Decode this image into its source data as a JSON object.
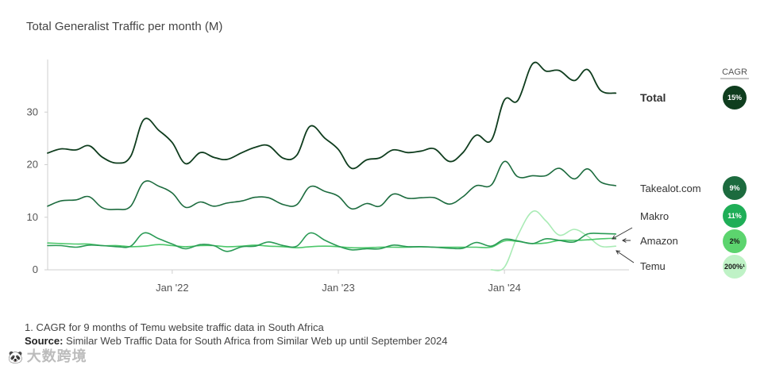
{
  "chart_data": {
    "type": "line",
    "title": "Total Generalist Traffic per month (M)",
    "xlabel": "",
    "ylabel": "",
    "ylim": [
      0,
      40
    ],
    "yticks": [
      0,
      10,
      20,
      30
    ],
    "x_range": [
      2021.25,
      2024.75
    ],
    "xticks": [
      {
        "label": "Jan '22",
        "value": 2022.0
      },
      {
        "label": "Jan '23",
        "value": 2023.0
      },
      {
        "label": "Jan '24",
        "value": 2024.0
      }
    ],
    "cagr_header": "CAGR",
    "series": [
      {
        "name": "Total",
        "color": "#0f3d1e",
        "cagr": "15%",
        "cagr_fill": "#0f3d1e",
        "cagr_text_color": "#ffffff",
        "x": [
          2021.25,
          2021.33,
          2021.42,
          2021.5,
          2021.58,
          2021.67,
          2021.75,
          2021.83,
          2021.92,
          2022.0,
          2022.08,
          2022.17,
          2022.25,
          2022.33,
          2022.42,
          2022.5,
          2022.58,
          2022.67,
          2022.75,
          2022.83,
          2022.92,
          2023.0,
          2023.08,
          2023.17,
          2023.25,
          2023.33,
          2023.42,
          2023.5,
          2023.58,
          2023.67,
          2023.75,
          2023.83,
          2023.92,
          2024.0,
          2024.08,
          2024.17,
          2024.25,
          2024.33,
          2024.42,
          2024.5,
          2024.58,
          2024.67
        ],
        "values": [
          22.2,
          23.0,
          22.8,
          23.6,
          21.4,
          20.3,
          21.6,
          28.6,
          26.5,
          24.2,
          20.2,
          22.3,
          21.4,
          21.0,
          22.3,
          23.3,
          23.6,
          21.2,
          21.8,
          27.3,
          25.0,
          22.9,
          19.3,
          20.9,
          21.3,
          22.8,
          22.3,
          22.6,
          23.0,
          20.6,
          22.3,
          25.6,
          24.6,
          32.3,
          32.2,
          39.2,
          37.8,
          37.9,
          36.0,
          38.1,
          34.1,
          33.6
        ]
      },
      {
        "name": "Takealot.com",
        "color": "#1c6b3e",
        "cagr": "9%",
        "cagr_fill": "#1c6b3e",
        "cagr_text_color": "#ffffff",
        "x": [
          2021.25,
          2021.33,
          2021.42,
          2021.5,
          2021.58,
          2021.67,
          2021.75,
          2021.83,
          2021.92,
          2022.0,
          2022.08,
          2022.17,
          2022.25,
          2022.33,
          2022.42,
          2022.5,
          2022.58,
          2022.67,
          2022.75,
          2022.83,
          2022.92,
          2023.0,
          2023.08,
          2023.17,
          2023.25,
          2023.33,
          2023.42,
          2023.5,
          2023.58,
          2023.67,
          2023.75,
          2023.83,
          2023.92,
          2024.0,
          2024.08,
          2024.17,
          2024.25,
          2024.33,
          2024.42,
          2024.5,
          2024.58,
          2024.67
        ],
        "values": [
          12.1,
          13.1,
          13.3,
          13.9,
          11.8,
          11.5,
          12.1,
          16.7,
          15.9,
          14.6,
          11.9,
          12.9,
          12.1,
          12.7,
          13.1,
          13.8,
          13.7,
          12.4,
          12.4,
          15.8,
          14.9,
          14.0,
          11.6,
          12.6,
          12.1,
          14.4,
          13.6,
          13.7,
          13.7,
          12.5,
          13.9,
          16.0,
          16.1,
          20.6,
          17.7,
          17.9,
          17.9,
          19.3,
          17.3,
          19.2,
          16.7,
          16.0
        ]
      },
      {
        "name": "Makro",
        "color": "#2a9a55",
        "cagr": "11%",
        "cagr_fill": "#1fae57",
        "cagr_text_color": "#ffffff",
        "x": [
          2021.25,
          2021.33,
          2021.42,
          2021.5,
          2021.58,
          2021.67,
          2021.75,
          2021.83,
          2021.92,
          2022.0,
          2022.08,
          2022.17,
          2022.25,
          2022.33,
          2022.42,
          2022.5,
          2022.58,
          2022.67,
          2022.75,
          2022.83,
          2022.92,
          2023.0,
          2023.08,
          2023.17,
          2023.25,
          2023.33,
          2023.42,
          2023.5,
          2023.58,
          2023.67,
          2023.75,
          2023.83,
          2023.92,
          2024.0,
          2024.08,
          2024.17,
          2024.25,
          2024.33,
          2024.42,
          2024.5,
          2024.58,
          2024.67
        ],
        "values": [
          4.6,
          4.6,
          4.3,
          4.7,
          4.6,
          4.4,
          4.5,
          7.0,
          5.9,
          4.9,
          4.0,
          4.8,
          4.6,
          3.5,
          4.4,
          4.5,
          5.3,
          4.6,
          4.5,
          7.0,
          5.6,
          4.5,
          3.8,
          4.0,
          4.0,
          4.7,
          4.4,
          4.4,
          4.3,
          4.1,
          4.1,
          5.2,
          4.5,
          5.8,
          5.5,
          5.0,
          5.9,
          5.6,
          5.3,
          6.8,
          6.9,
          6.8
        ]
      },
      {
        "name": "Amazon",
        "color": "#4cc76a",
        "cagr": "2%",
        "cagr_fill": "#5cd46e",
        "cagr_text_color": "#1a1a1a",
        "x": [
          2021.25,
          2021.33,
          2021.42,
          2021.5,
          2021.58,
          2021.67,
          2021.75,
          2021.83,
          2021.92,
          2022.0,
          2022.08,
          2022.17,
          2022.25,
          2022.33,
          2022.42,
          2022.5,
          2022.58,
          2022.67,
          2022.75,
          2022.83,
          2022.92,
          2023.0,
          2023.08,
          2023.17,
          2023.25,
          2023.33,
          2023.42,
          2023.5,
          2023.58,
          2023.67,
          2023.75,
          2023.83,
          2023.92,
          2024.0,
          2024.08,
          2024.17,
          2024.25,
          2024.33,
          2024.42,
          2024.5,
          2024.58,
          2024.67
        ],
        "values": [
          5.1,
          5.0,
          4.9,
          4.9,
          4.6,
          4.6,
          4.4,
          4.5,
          4.8,
          4.6,
          4.4,
          4.6,
          4.6,
          4.4,
          4.5,
          4.7,
          4.5,
          4.4,
          4.2,
          4.4,
          4.5,
          4.4,
          4.2,
          4.2,
          4.3,
          4.3,
          4.3,
          4.4,
          4.3,
          4.3,
          4.3,
          4.3,
          4.3,
          5.5,
          5.4,
          5.0,
          5.1,
          5.6,
          5.6,
          5.7,
          5.9,
          6.0
        ]
      },
      {
        "name": "Temu",
        "color": "#a9ebb5",
        "cagr": "200%¹",
        "cagr_fill": "#bff2c6",
        "cagr_text_color": "#1a1a1a",
        "x": [
          2023.92,
          2024.0,
          2024.08,
          2024.17,
          2024.25,
          2024.33,
          2024.42,
          2024.5,
          2024.58,
          2024.67
        ],
        "values": [
          0.0,
          0.5,
          6.5,
          11.1,
          9.3,
          6.6,
          7.7,
          6.4,
          4.5,
          4.5
        ]
      }
    ]
  },
  "footnote": {
    "note_1": "1. CAGR for 9 months of Temu website traffic data in South Africa",
    "source_label": "Source:",
    "source_text": " Similar Web Traffic Data for South Africa from Similar Web up until September 2024"
  },
  "watermark": {
    "icon": "🐼",
    "text": "大数跨境"
  }
}
